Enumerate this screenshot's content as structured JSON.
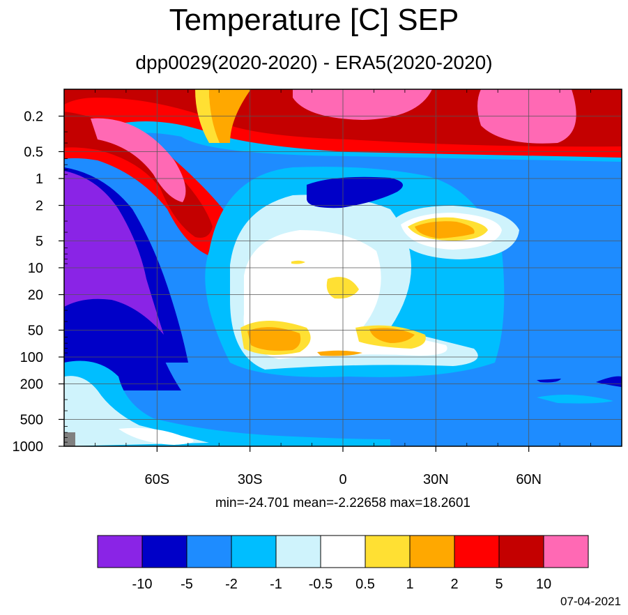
{
  "title": "Temperature [C] SEP",
  "subtitle": "dpp0029(2020-2020) - ERA5(2020-2020)",
  "stats": "min=-24.701   mean=-2.22658   max=18.2601",
  "date": "07-04-2021",
  "chart_data": {
    "type": "heatmap",
    "xaxis": {
      "ticks": [
        "60S",
        "30S",
        "0",
        "30N",
        "60N"
      ],
      "tick_values": [
        -60,
        -30,
        0,
        30,
        60
      ],
      "range": [
        -90,
        90
      ]
    },
    "yaxis": {
      "ticks": [
        "0.2",
        "0.5",
        "1",
        "2",
        "5",
        "10",
        "20",
        "50",
        "100",
        "200",
        "500",
        "1000"
      ],
      "tick_values": [
        0.2,
        0.5,
        1,
        2,
        5,
        10,
        20,
        50,
        100,
        200,
        500,
        1000
      ],
      "range": [
        0.1,
        1000
      ],
      "scale": "log",
      "inverted": true
    },
    "colorbar": {
      "labels": [
        "-10",
        "-5",
        "-2",
        "-1",
        "-0.5",
        "0.5",
        "1",
        "2",
        "5",
        "10"
      ],
      "levels": [
        -10,
        -5,
        -2,
        -1,
        -0.5,
        0.5,
        1,
        2,
        5,
        10
      ],
      "colors": [
        "#8a24e6",
        "#0000c8",
        "#1e8cff",
        "#00beff",
        "#cff3fc",
        "#ffffff",
        "#ffe033",
        "#ffa800",
        "#ff0000",
        "#c40000",
        "#ff69b4"
      ]
    },
    "min": -24.701,
    "mean": -2.22658,
    "max": 18.2601
  }
}
